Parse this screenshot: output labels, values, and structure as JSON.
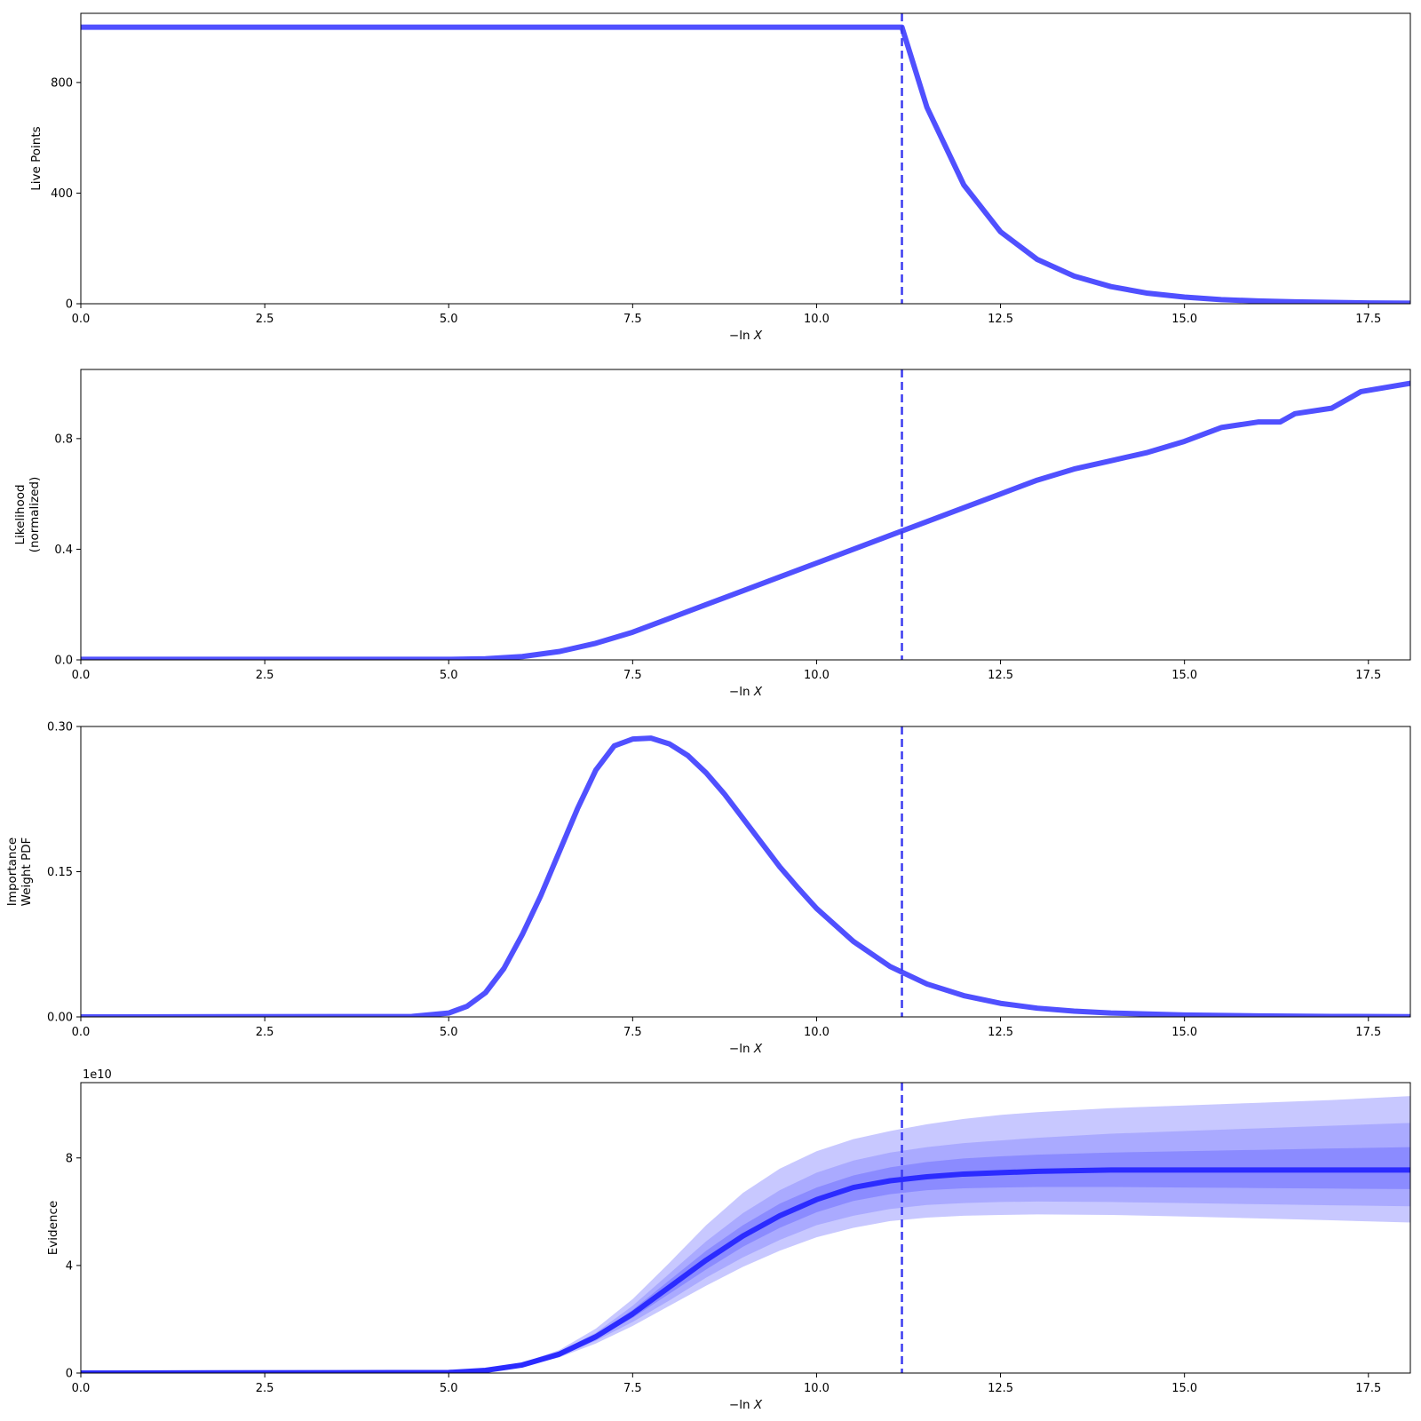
{
  "colors": {
    "line": "#5050ff",
    "dashed": "#3c3cf0",
    "evidence_line": "#2b2bff",
    "band_outer": "#c8c8ff",
    "band_mid": "#a0a0ff",
    "band_inner": "#8080ff",
    "axes": "#000000"
  },
  "chart_data": [
    {
      "type": "line",
      "ylabel": "Live Points",
      "xlabel": "−ln X",
      "xlim": [
        0,
        18.07
      ],
      "ylim": [
        0,
        1050
      ],
      "xticks": [
        0,
        2.5,
        5,
        7.5,
        10,
        12.5,
        15,
        17.5
      ],
      "xtick_labels": [
        "0.0",
        "2.5",
        "5.0",
        "7.5",
        "10.0",
        "12.5",
        "15.0",
        "17.5"
      ],
      "yticks": [
        0,
        400,
        800
      ],
      "ytick_labels": [
        "0",
        "400",
        "800"
      ],
      "vline": 11.16,
      "series": [
        {
          "x": [
            0,
            11.16,
            11.5,
            12.0,
            12.5,
            13.0,
            13.5,
            14.0,
            14.5,
            15.0,
            15.5,
            16.0,
            16.5,
            17.0,
            17.5,
            18.07
          ],
          "y": [
            1000,
            1000,
            710,
            430,
            260,
            160,
            100,
            62,
            38,
            24,
            15,
            10,
            7,
            5,
            3,
            2
          ]
        }
      ]
    },
    {
      "type": "line",
      "ylabel_lines": [
        "Likelihood",
        "(normalized)"
      ],
      "xlabel": "−ln X",
      "xlim": [
        0,
        18.07
      ],
      "ylim": [
        0,
        1.05
      ],
      "xticks": [
        0,
        2.5,
        5,
        7.5,
        10,
        12.5,
        15,
        17.5
      ],
      "xtick_labels": [
        "0.0",
        "2.5",
        "5.0",
        "7.5",
        "10.0",
        "12.5",
        "15.0",
        "17.5"
      ],
      "yticks": [
        0,
        0.4,
        0.8
      ],
      "ytick_labels": [
        "0.0",
        "0.4",
        "0.8"
      ],
      "vline": 11.16,
      "series": [
        {
          "x": [
            0,
            5.0,
            5.5,
            6.0,
            6.5,
            7.0,
            7.5,
            8.0,
            8.5,
            9.0,
            9.5,
            10.0,
            10.5,
            11.0,
            11.5,
            12.0,
            12.5,
            13.0,
            13.5,
            14.0,
            14.5,
            15.0,
            15.5,
            16.0,
            16.3,
            16.5,
            17.0,
            17.4,
            18.07
          ],
          "y": [
            0.002,
            0.002,
            0.004,
            0.012,
            0.03,
            0.06,
            0.1,
            0.15,
            0.2,
            0.25,
            0.3,
            0.35,
            0.4,
            0.45,
            0.5,
            0.55,
            0.6,
            0.65,
            0.69,
            0.72,
            0.75,
            0.79,
            0.84,
            0.86,
            0.86,
            0.89,
            0.91,
            0.97,
            1.0
          ]
        }
      ]
    },
    {
      "type": "line",
      "ylabel_lines": [
        "Importance",
        "Weight PDF"
      ],
      "xlabel": "−ln X",
      "xlim": [
        0,
        18.07
      ],
      "ylim": [
        0,
        0.3
      ],
      "xticks": [
        0,
        2.5,
        5,
        7.5,
        10,
        12.5,
        15,
        17.5
      ],
      "xtick_labels": [
        "0.0",
        "2.5",
        "5.0",
        "7.5",
        "10.0",
        "12.5",
        "15.0",
        "17.5"
      ],
      "yticks": [
        0,
        0.15,
        0.3
      ],
      "ytick_labels": [
        "0.00",
        "0.15",
        "0.30"
      ],
      "vline": 11.16,
      "series": [
        {
          "x": [
            0,
            4.5,
            5.0,
            5.25,
            5.5,
            5.75,
            6.0,
            6.25,
            6.5,
            6.75,
            7.0,
            7.25,
            7.5,
            7.75,
            8.0,
            8.25,
            8.5,
            8.75,
            9.0,
            9.25,
            9.5,
            9.75,
            10.0,
            10.5,
            11.0,
            11.5,
            12.0,
            12.5,
            13.0,
            13.5,
            14.0,
            15.0,
            16.0,
            17.0,
            18.07
          ],
          "y": [
            0.0,
            0.0005,
            0.004,
            0.011,
            0.025,
            0.05,
            0.085,
            0.125,
            0.17,
            0.215,
            0.255,
            0.28,
            0.287,
            0.288,
            0.282,
            0.27,
            0.252,
            0.23,
            0.205,
            0.18,
            0.155,
            0.133,
            0.112,
            0.078,
            0.052,
            0.034,
            0.022,
            0.014,
            0.009,
            0.006,
            0.004,
            0.002,
            0.001,
            0.0005,
            0.0002
          ]
        }
      ]
    },
    {
      "type": "area",
      "ylabel": "Evidence",
      "xlabel": "−ln X",
      "offset_label": "1e10",
      "xlim": [
        0,
        18.07
      ],
      "ylim": [
        0,
        10.8
      ],
      "xticks": [
        0,
        2.5,
        5,
        7.5,
        10,
        12.5,
        15,
        17.5
      ],
      "xtick_labels": [
        "0.0",
        "2.5",
        "5.0",
        "7.5",
        "10.0",
        "12.5",
        "15.0",
        "17.5"
      ],
      "yticks": [
        0,
        4,
        8
      ],
      "ytick_labels": [
        "0",
        "4",
        "8"
      ],
      "vline": 11.16,
      "x": [
        0,
        5.0,
        5.5,
        6.0,
        6.5,
        7.0,
        7.5,
        8.0,
        8.5,
        9.0,
        9.5,
        10.0,
        10.5,
        11.0,
        11.5,
        12.0,
        12.5,
        13.0,
        14.0,
        15.0,
        16.0,
        17.0,
        18.07
      ],
      "median": [
        0,
        0.02,
        0.1,
        0.3,
        0.7,
        1.35,
        2.2,
        3.2,
        4.2,
        5.1,
        5.85,
        6.45,
        6.9,
        7.15,
        7.3,
        7.4,
        7.45,
        7.5,
        7.55,
        7.55,
        7.55,
        7.55,
        7.55
      ],
      "bands": [
        {
          "name": "3sigma",
          "upper": [
            0,
            0.03,
            0.13,
            0.38,
            0.85,
            1.65,
            2.75,
            4.1,
            5.5,
            6.7,
            7.6,
            8.25,
            8.7,
            9.0,
            9.25,
            9.45,
            9.6,
            9.7,
            9.85,
            9.95,
            10.05,
            10.15,
            10.3
          ],
          "lower": [
            0,
            0.015,
            0.08,
            0.24,
            0.58,
            1.1,
            1.75,
            2.5,
            3.25,
            3.95,
            4.55,
            5.05,
            5.4,
            5.65,
            5.78,
            5.85,
            5.88,
            5.9,
            5.88,
            5.82,
            5.75,
            5.68,
            5.6
          ]
        },
        {
          "name": "2sigma",
          "upper": [
            0,
            0.025,
            0.12,
            0.35,
            0.78,
            1.5,
            2.5,
            3.7,
            4.9,
            5.95,
            6.8,
            7.45,
            7.9,
            8.2,
            8.4,
            8.55,
            8.65,
            8.75,
            8.9,
            9.0,
            9.1,
            9.2,
            9.3
          ],
          "lower": [
            0,
            0.017,
            0.09,
            0.26,
            0.62,
            1.2,
            1.9,
            2.7,
            3.55,
            4.3,
            4.95,
            5.5,
            5.85,
            6.1,
            6.25,
            6.32,
            6.36,
            6.38,
            6.36,
            6.32,
            6.28,
            6.24,
            6.2
          ]
        },
        {
          "name": "1sigma",
          "upper": [
            0,
            0.022,
            0.11,
            0.32,
            0.74,
            1.42,
            2.35,
            3.45,
            4.55,
            5.5,
            6.3,
            6.9,
            7.35,
            7.65,
            7.85,
            7.98,
            8.06,
            8.12,
            8.2,
            8.25,
            8.3,
            8.35,
            8.4
          ],
          "lower": [
            0,
            0.018,
            0.095,
            0.28,
            0.66,
            1.28,
            2.05,
            2.95,
            3.85,
            4.7,
            5.4,
            5.98,
            6.4,
            6.65,
            6.8,
            6.87,
            6.9,
            6.92,
            6.92,
            6.9,
            6.88,
            6.86,
            6.84
          ]
        }
      ]
    }
  ]
}
